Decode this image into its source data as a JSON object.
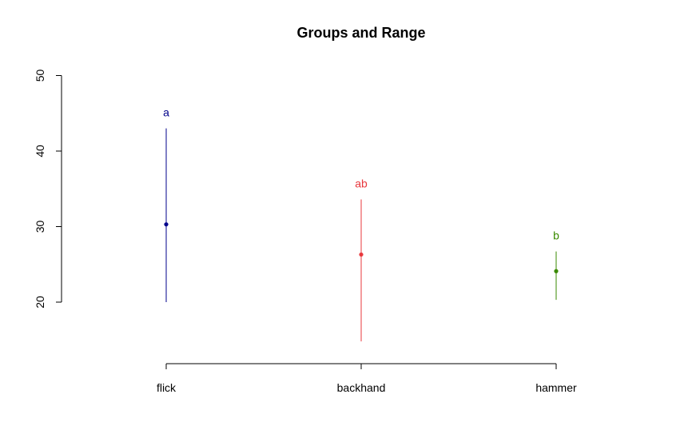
{
  "chart_data": {
    "type": "scatter",
    "title": "Groups and Range",
    "xlabel": "",
    "ylabel": "",
    "categories": [
      "flick",
      "backhand",
      "hammer"
    ],
    "y_ticks": [
      20,
      30,
      40,
      50
    ],
    "ylim": [
      12,
      50
    ],
    "grid": false,
    "legend": "none",
    "points": [
      {
        "category": "flick",
        "mean": 30.3,
        "min": 20.0,
        "max": 43.0,
        "group_label": "a",
        "color": "#00008B"
      },
      {
        "category": "backhand",
        "mean": 26.3,
        "min": 14.8,
        "max": 33.6,
        "group_label": "ab",
        "color": "#E8383D"
      },
      {
        "category": "hammer",
        "mean": 24.1,
        "min": 20.3,
        "max": 26.7,
        "group_label": "b",
        "color": "#3A8A00"
      }
    ]
  }
}
